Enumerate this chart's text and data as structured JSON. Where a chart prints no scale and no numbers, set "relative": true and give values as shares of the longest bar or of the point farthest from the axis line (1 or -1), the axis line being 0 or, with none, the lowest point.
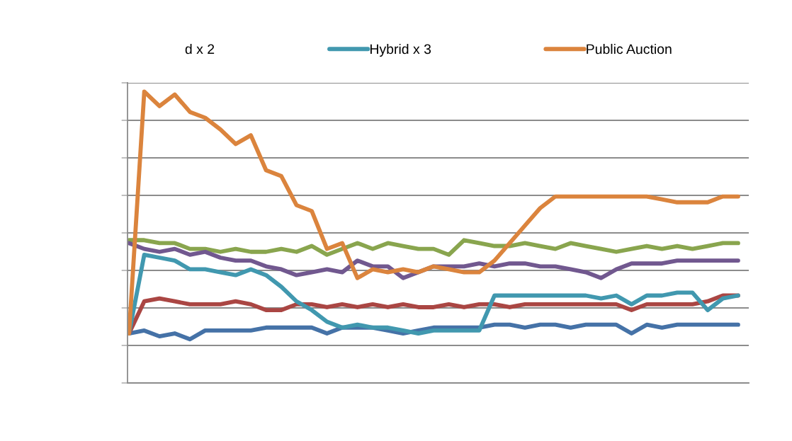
{
  "chart_data": {
    "type": "line",
    "relative": true,
    "grid": "y",
    "tick_labels": false,
    "legend": "top",
    "line_style": "solid",
    "marker": "none",
    "categories": [
      null,
      null,
      null,
      null,
      null,
      null,
      null,
      null,
      null,
      null,
      null,
      null,
      null,
      null,
      null,
      null,
      null,
      null,
      null,
      null,
      null,
      null,
      null,
      null,
      null,
      null,
      null,
      null,
      null,
      null,
      null,
      null,
      null,
      null,
      null,
      null,
      null,
      null,
      null,
      null,
      null
    ],
    "annotations": [
      "d x 2"
    ],
    "series": [
      {
        "color": "#4572a7",
        "values": [
          0.17,
          0.18,
          0.16,
          0.17,
          0.15,
          0.18,
          0.18,
          0.18,
          0.18,
          0.19,
          0.19,
          0.19,
          0.19,
          0.17,
          0.19,
          0.19,
          0.19,
          0.18,
          0.17,
          0.18,
          0.19,
          0.19,
          0.19,
          0.19,
          0.2,
          0.2,
          0.19,
          0.2,
          0.2,
          0.19,
          0.2,
          0.2,
          0.2,
          0.17,
          0.2,
          0.19,
          0.2,
          0.2,
          0.2,
          0.2,
          0.2
        ]
      },
      {
        "color": "#aa4643",
        "values": [
          0.17,
          0.28,
          0.29,
          0.28,
          0.27,
          0.27,
          0.27,
          0.28,
          0.27,
          0.25,
          0.25,
          0.27,
          0.27,
          0.26,
          0.27,
          0.26,
          0.27,
          0.26,
          0.27,
          0.26,
          0.26,
          0.27,
          0.26,
          0.27,
          0.27,
          0.26,
          0.27,
          0.27,
          0.27,
          0.27,
          0.27,
          0.27,
          0.27,
          0.25,
          0.27,
          0.27,
          0.27,
          0.27,
          0.28,
          0.3,
          0.3
        ]
      },
      {
        "color": "#89a54e",
        "values": [
          0.49,
          0.49,
          0.48,
          0.48,
          0.46,
          0.46,
          0.45,
          0.46,
          0.45,
          0.45,
          0.46,
          0.45,
          0.47,
          0.44,
          0.46,
          0.48,
          0.46,
          0.48,
          0.47,
          0.46,
          0.46,
          0.44,
          0.49,
          0.48,
          0.47,
          0.47,
          0.48,
          0.47,
          0.46,
          0.48,
          0.47,
          0.46,
          0.45,
          0.46,
          0.47,
          0.46,
          0.47,
          0.46,
          0.47,
          0.48,
          0.48
        ]
      },
      {
        "color": "#71588f",
        "values": [
          0.48,
          0.46,
          0.45,
          0.46,
          0.44,
          0.45,
          0.43,
          0.42,
          0.42,
          0.4,
          0.39,
          0.37,
          0.38,
          0.39,
          0.38,
          0.42,
          0.4,
          0.4,
          0.36,
          0.38,
          0.4,
          0.4,
          0.4,
          0.41,
          0.4,
          0.41,
          0.41,
          0.4,
          0.4,
          0.39,
          0.38,
          0.36,
          0.39,
          0.41,
          0.41,
          0.41,
          0.42,
          0.42,
          0.42,
          0.42,
          0.42
        ]
      },
      {
        "name": "Hybrid x 3",
        "color": "#4198af",
        "values": [
          0.17,
          0.44,
          0.43,
          0.42,
          0.39,
          0.39,
          0.38,
          0.37,
          0.39,
          0.37,
          0.33,
          0.28,
          0.25,
          0.21,
          0.19,
          0.2,
          0.19,
          0.19,
          0.18,
          0.17,
          0.18,
          0.18,
          0.18,
          0.18,
          0.3,
          0.3,
          0.3,
          0.3,
          0.3,
          0.3,
          0.3,
          0.29,
          0.3,
          0.27,
          0.3,
          0.3,
          0.31,
          0.31,
          0.25,
          0.29,
          0.3
        ]
      },
      {
        "name": "Public Auction",
        "color": "#db843d",
        "values": [
          0.17,
          1.0,
          0.95,
          0.99,
          0.93,
          0.91,
          0.87,
          0.82,
          0.85,
          0.73,
          0.71,
          0.61,
          0.59,
          0.46,
          0.48,
          0.36,
          0.39,
          0.38,
          0.39,
          0.38,
          0.4,
          0.39,
          0.38,
          0.38,
          0.42,
          0.48,
          0.54,
          0.6,
          0.64,
          0.64,
          0.64,
          0.64,
          0.64,
          0.64,
          0.64,
          0.63,
          0.62,
          0.62,
          0.62,
          0.64,
          0.64
        ]
      }
    ]
  }
}
